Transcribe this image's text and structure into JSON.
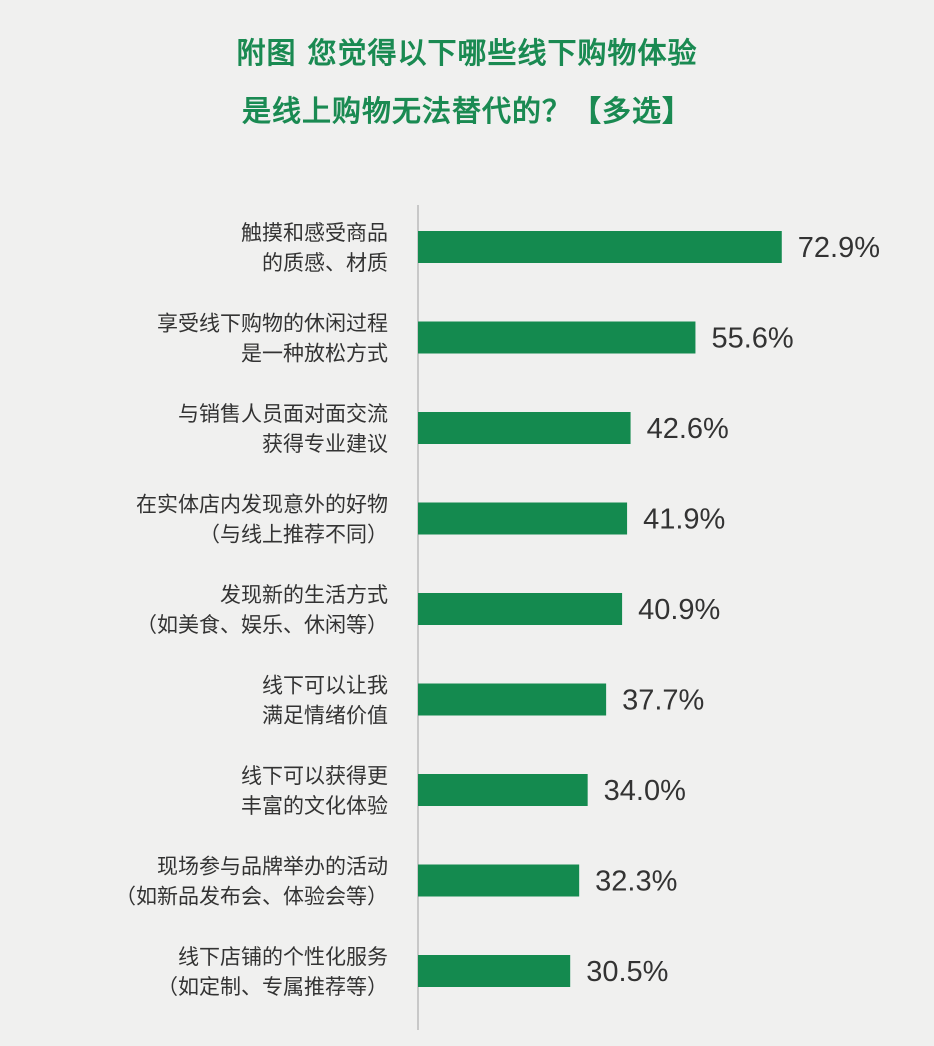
{
  "title_lines": [
    "附图  您觉得以下哪些线下购物体验",
    "是线上购物无法替代的？【多选】"
  ],
  "colors": {
    "bar": "#148a4f",
    "title": "#1a8a52",
    "axis": "#c8c8c8",
    "text": "#333333",
    "background": "#f0f0ef"
  },
  "chart_data": {
    "type": "bar",
    "orientation": "horizontal",
    "title": "附图  您觉得以下哪些线下购物体验是线上购物无法替代的？【多选】",
    "categories": [
      [
        "触摸和感受商品",
        "的质感、材质"
      ],
      [
        "享受线下购物的休闲过程",
        "是一种放松方式"
      ],
      [
        "与销售人员面对面交流",
        "获得专业建议"
      ],
      [
        "在实体店内发现意外的好物",
        "（与线上推荐不同）"
      ],
      [
        "发现新的生活方式",
        "（如美食、娱乐、休闲等）"
      ],
      [
        "线下可以让我",
        "满足情绪价值"
      ],
      [
        "线下可以获得更",
        "丰富的文化体验"
      ],
      [
        "现场参与品牌举办的活动",
        "（如新品发布会、体验会等）"
      ],
      [
        "线下店铺的个性化服务",
        "（如定制、专属推荐等）"
      ]
    ],
    "values": [
      72.9,
      55.6,
      42.6,
      41.9,
      40.9,
      37.7,
      34.0,
      32.3,
      30.5
    ],
    "value_labels": [
      "72.9%",
      "55.6%",
      "42.6%",
      "41.9%",
      "40.9%",
      "37.7%",
      "34.0%",
      "32.3%",
      "30.5%"
    ],
    "unit": "%",
    "xlim": [
      0,
      100
    ],
    "grid": false,
    "legend": "none"
  }
}
